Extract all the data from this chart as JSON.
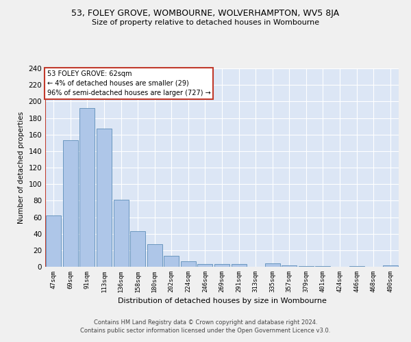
{
  "title1": "53, FOLEY GROVE, WOMBOURNE, WOLVERHAMPTON, WV5 8JA",
  "title2": "Size of property relative to detached houses in Wombourne",
  "xlabel": "Distribution of detached houses by size in Wombourne",
  "ylabel": "Number of detached properties",
  "categories": [
    "47sqm",
    "69sqm",
    "91sqm",
    "113sqm",
    "136sqm",
    "158sqm",
    "180sqm",
    "202sqm",
    "224sqm",
    "246sqm",
    "269sqm",
    "291sqm",
    "313sqm",
    "335sqm",
    "357sqm",
    "379sqm",
    "401sqm",
    "424sqm",
    "446sqm",
    "468sqm",
    "490sqm"
  ],
  "values": [
    62,
    153,
    192,
    167,
    81,
    43,
    27,
    13,
    7,
    3,
    3,
    3,
    0,
    4,
    2,
    1,
    1,
    0,
    1,
    0,
    2
  ],
  "bar_color": "#aec6e8",
  "bar_edge_color": "#5b8db8",
  "highlight_line_color": "#c0392b",
  "bg_color": "#dce6f5",
  "grid_color": "#ffffff",
  "annotation_text": "53 FOLEY GROVE: 62sqm\n← 4% of detached houses are smaller (29)\n96% of semi-detached houses are larger (727) →",
  "annotation_box_color": "#ffffff",
  "annotation_box_edge_color": "#c0392b",
  "footer1": "Contains HM Land Registry data © Crown copyright and database right 2024.",
  "footer2": "Contains public sector information licensed under the Open Government Licence v3.0.",
  "fig_bg_color": "#f0f0f0",
  "ylim": [
    0,
    240
  ],
  "yticks": [
    0,
    20,
    40,
    60,
    80,
    100,
    120,
    140,
    160,
    180,
    200,
    220,
    240
  ]
}
